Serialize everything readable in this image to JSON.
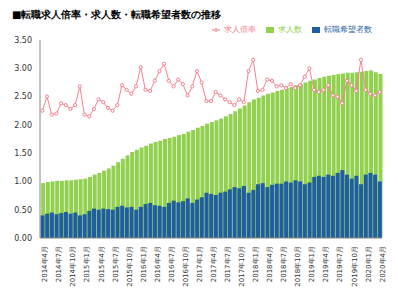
{
  "chart_data": {
    "type": "bar",
    "title": "■転職求人倍率・求人数・転職希望者数の推移",
    "categories": [
      "2014年4月",
      null,
      null,
      "2014年7月",
      null,
      null,
      "2014年10月",
      null,
      null,
      "2015年1月",
      null,
      null,
      "2015年4月",
      null,
      null,
      "2015年7月",
      null,
      null,
      "2015年10月",
      null,
      null,
      "2016年1月",
      null,
      null,
      "2016年4月",
      null,
      null,
      "2016年7月",
      null,
      null,
      "2016年10月",
      null,
      null,
      "2017年1月",
      null,
      null,
      "2017年4月",
      null,
      null,
      "2017年7月",
      null,
      null,
      "2017年10月",
      null,
      null,
      "2018年1月",
      null,
      null,
      "2018年4月",
      null,
      null,
      "2018年7月",
      null,
      null,
      "2018年10月",
      null,
      null,
      "2019年1月",
      null,
      null,
      "2019年4月",
      null,
      null,
      "2019年7月",
      null,
      null,
      "2019年10月",
      null,
      null,
      "2020年1月",
      null,
      null,
      "2020年4月"
    ],
    "series": [
      {
        "name": "求人数",
        "color": "#92d050",
        "values": [
          0.97,
          0.99,
          1.0,
          1.01,
          1.01,
          1.02,
          1.02,
          1.03,
          1.04,
          1.05,
          1.08,
          1.12,
          1.15,
          1.19,
          1.23,
          1.28,
          1.34,
          1.4,
          1.46,
          1.52,
          1.56,
          1.6,
          1.63,
          1.67,
          1.7,
          1.72,
          1.75,
          1.77,
          1.79,
          1.82,
          1.84,
          1.88,
          1.91,
          1.95,
          1.98,
          2.02,
          2.05,
          2.08,
          2.11,
          2.15,
          2.19,
          2.24,
          2.29,
          2.34,
          2.4,
          2.45,
          2.48,
          2.52,
          2.55,
          2.57,
          2.6,
          2.62,
          2.65,
          2.67,
          2.7,
          2.72,
          2.75,
          2.78,
          2.8,
          2.83,
          2.85,
          2.87,
          2.88,
          2.9,
          2.91,
          2.92,
          2.92,
          2.93,
          2.94,
          2.95,
          2.96,
          2.93,
          2.9
        ]
      },
      {
        "name": "転職希望者数",
        "color": "#1f5fa0",
        "values": [
          0.4,
          0.43,
          0.45,
          0.42,
          0.44,
          0.46,
          0.43,
          0.45,
          0.4,
          0.42,
          0.48,
          0.52,
          0.5,
          0.52,
          0.51,
          0.5,
          0.55,
          0.57,
          0.54,
          0.55,
          0.5,
          0.55,
          0.6,
          0.62,
          0.58,
          0.57,
          0.55,
          0.62,
          0.66,
          0.63,
          0.65,
          0.7,
          0.62,
          0.68,
          0.72,
          0.8,
          0.78,
          0.76,
          0.8,
          0.82,
          0.86,
          0.9,
          0.88,
          0.92,
          0.8,
          0.85,
          0.95,
          0.97,
          0.9,
          0.94,
          0.96,
          0.96,
          1.0,
          0.98,
          1.02,
          1.0,
          0.95,
          0.98,
          1.08,
          1.1,
          1.08,
          1.12,
          1.1,
          1.15,
          1.2,
          1.12,
          1.05,
          1.1,
          0.95,
          1.12,
          1.15,
          1.12,
          1.0
        ]
      },
      {
        "name": "求人倍率",
        "type": "line",
        "marker": "circle",
        "color": "#f4808f",
        "values": [
          2.25,
          2.5,
          2.18,
          2.2,
          2.38,
          2.35,
          2.28,
          2.35,
          2.68,
          2.18,
          2.15,
          2.28,
          2.45,
          2.4,
          2.3,
          2.25,
          2.35,
          2.7,
          2.62,
          2.55,
          2.68,
          3.02,
          2.62,
          2.6,
          2.78,
          2.95,
          3.08,
          2.78,
          2.68,
          2.8,
          2.72,
          2.52,
          2.68,
          2.95,
          2.75,
          2.42,
          2.42,
          2.58,
          2.52,
          2.45,
          2.4,
          2.35,
          2.45,
          2.4,
          2.95,
          3.15,
          2.6,
          2.62,
          2.8,
          2.78,
          2.68,
          2.7,
          2.65,
          2.72,
          2.65,
          2.7,
          2.85,
          3.0,
          2.62,
          2.58,
          2.62,
          2.7,
          2.52,
          2.5,
          2.38,
          2.78,
          2.7,
          2.6,
          3.15,
          2.62,
          2.55,
          2.52,
          2.58
        ]
      }
    ],
    "ylim": [
      0,
      3.5
    ],
    "yticks": [
      {
        "value": 0,
        "label": "0.00"
      },
      {
        "value": 0.5,
        "label": "0.50"
      },
      {
        "value": 1,
        "label": "1.00"
      },
      {
        "value": 1.5,
        "label": "1.50"
      },
      {
        "value": 2,
        "label": "2.00"
      },
      {
        "value": 2.5,
        "label": "2.50"
      },
      {
        "value": 3,
        "label": "3.00"
      },
      {
        "value": 3.5,
        "label": "3.50"
      }
    ],
    "grid": false,
    "legend": "top"
  }
}
